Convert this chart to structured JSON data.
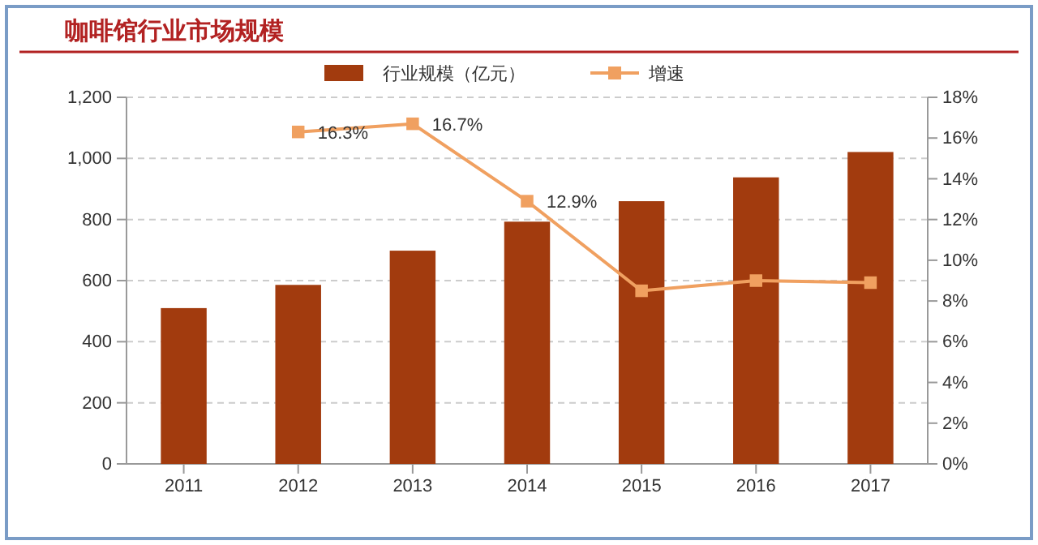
{
  "chart_data": {
    "type": "bar",
    "title": "咖啡馆行业市场规模",
    "categories": [
      "2011",
      "2012",
      "2013",
      "2014",
      "2015",
      "2016",
      "2017"
    ],
    "series": [
      {
        "name": "行业规模（亿元）",
        "color": "#a23b0e",
        "values": [
          510,
          586,
          698,
          793,
          860,
          938,
          1021
        ]
      },
      {
        "name": "增速",
        "type": "line",
        "axis": "y2",
        "color": "#f0a060",
        "marker": "square",
        "values": [
          null,
          16.3,
          16.7,
          12.9,
          8.5,
          9.0,
          8.9
        ],
        "value_labels": [
          null,
          "16.3%",
          "16.7%",
          "12.9%",
          null,
          null,
          null
        ]
      }
    ],
    "ylim": [
      0,
      1200
    ],
    "yticks": [
      0,
      {
        "value": 200,
        "label": "200"
      },
      {
        "value": 400,
        "label": "400"
      },
      {
        "value": 600,
        "label": "600"
      },
      {
        "value": 800,
        "label": "800"
      },
      {
        "value": 1000,
        "label": "1,000"
      },
      {
        "value": 1200,
        "label": "1,200"
      }
    ],
    "y2lim": [
      0,
      18
    ],
    "y2ticks": [
      {
        "value": 0,
        "label": "0%"
      },
      {
        "value": 2,
        "label": "2%"
      },
      {
        "value": 4,
        "label": "4%"
      },
      {
        "value": 6,
        "label": "6%"
      },
      {
        "value": 8,
        "label": "8%"
      },
      {
        "value": 10,
        "label": "10%"
      },
      {
        "value": 12,
        "label": "12%"
      },
      {
        "value": 14,
        "label": "14%"
      },
      {
        "value": 16,
        "label": "16%"
      },
      {
        "value": 18,
        "label": "18%"
      }
    ],
    "grid": "y",
    "legend": "top"
  }
}
